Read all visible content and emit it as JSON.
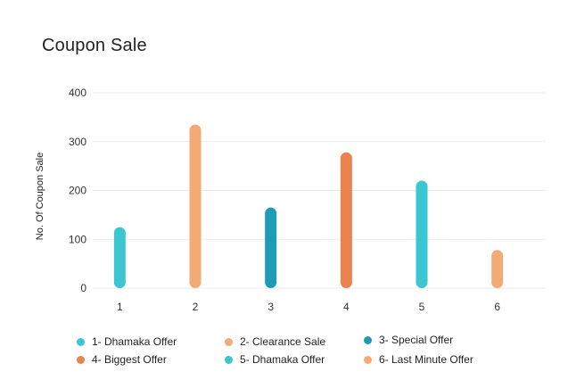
{
  "chart_data": {
    "type": "bar",
    "title": "Coupon Sale",
    "xlabel": "",
    "ylabel": "No. Of Coupon Sale",
    "ylim": [
      0,
      400
    ],
    "yticks": [
      0,
      100,
      200,
      300,
      400
    ],
    "grid": true,
    "legend_position": "bottom",
    "categories": [
      "1",
      "2",
      "3",
      "4",
      "5",
      "6"
    ],
    "values": [
      125,
      335,
      165,
      278,
      220,
      78
    ],
    "colors": [
      "#3cc6d1",
      "#f2ab76",
      "#1f9bb8",
      "#e9824f",
      "#3cc6d1",
      "#f2ab76"
    ],
    "legend": [
      {
        "label": "1- Dhamaka Offer",
        "color": "#3cc6d1"
      },
      {
        "label": "2- Clearance Sale",
        "color": "#f2ab76"
      },
      {
        "label": "3- Special Offer",
        "color": "#1f9bb8"
      },
      {
        "label": "4- Biggest Offer",
        "color": "#e9824f"
      },
      {
        "label": "5- Dhamaka Offer",
        "color": "#3cc6d1"
      },
      {
        "label": "6- Last Minute Offer",
        "color": "#f2ab76"
      }
    ]
  }
}
